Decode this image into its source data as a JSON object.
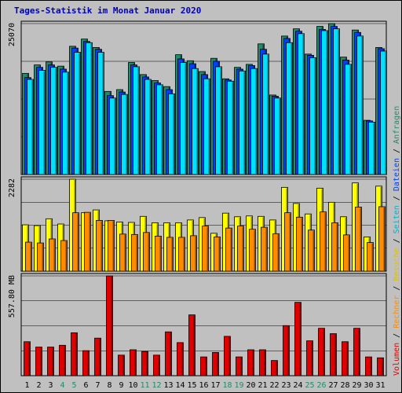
{
  "title": "Tages-Statistik im Monat Januar 2020",
  "chart_data": [
    {
      "type": "bar",
      "title": "",
      "ylabel": "25070",
      "ylim": [
        0,
        25070
      ],
      "categories": [
        "1",
        "2",
        "3",
        "4",
        "5",
        "6",
        "7",
        "8",
        "9",
        "10",
        "11",
        "12",
        "13",
        "14",
        "15",
        "16",
        "17",
        "18",
        "19",
        "20",
        "21",
        "22",
        "23",
        "24",
        "25",
        "26",
        "27",
        "28",
        "29",
        "30",
        "31"
      ],
      "series": [
        {
          "name": "Anfragen",
          "color": "#228b6b",
          "values": [
            16800,
            18200,
            18700,
            18000,
            21300,
            22500,
            21100,
            13800,
            14100,
            18600,
            16600,
            15600,
            14600,
            19900,
            18900,
            17100,
            19300,
            15900,
            17800,
            18300,
            21700,
            13200,
            23000,
            24200,
            20000,
            24600,
            25070,
            19500,
            24000,
            9000,
            21100
          ]
        },
        {
          "name": "Dateien",
          "color": "#0040ff",
          "values": [
            16100,
            17800,
            18200,
            17500,
            21000,
            22100,
            20800,
            13100,
            13700,
            18200,
            16200,
            15200,
            14100,
            19200,
            18400,
            16600,
            18800,
            15700,
            17500,
            18100,
            20800,
            13000,
            22600,
            23800,
            19800,
            24100,
            24600,
            19000,
            23600,
            8900,
            20900
          ]
        },
        {
          "name": "Seiten",
          "color": "#00e0ff",
          "values": [
            15800,
            17300,
            17800,
            17000,
            20300,
            21900,
            20300,
            12700,
            13300,
            17900,
            15800,
            14900,
            13400,
            18600,
            17600,
            15900,
            17900,
            15500,
            17200,
            17600,
            20000,
            12700,
            21900,
            23400,
            19400,
            23900,
            24200,
            18300,
            23000,
            8700,
            20500
          ]
        }
      ],
      "legend": "right-vertical"
    },
    {
      "type": "bar",
      "title": "",
      "ylabel": "2282",
      "ylim": [
        0,
        2282
      ],
      "categories": [
        "1",
        "2",
        "3",
        "4",
        "5",
        "6",
        "7",
        "8",
        "9",
        "10",
        "11",
        "12",
        "13",
        "14",
        "15",
        "16",
        "17",
        "18",
        "19",
        "20",
        "21",
        "22",
        "23",
        "24",
        "25",
        "26",
        "27",
        "28",
        "29",
        "30",
        "31"
      ],
      "series": [
        {
          "name": "Besuche",
          "color": "#ffff00",
          "values": [
            1150,
            1130,
            1300,
            1170,
            2282,
            1450,
            1520,
            1250,
            1220,
            1210,
            1360,
            1200,
            1200,
            1200,
            1270,
            1330,
            940,
            1440,
            1350,
            1370,
            1360,
            1270,
            2080,
            1680,
            1420,
            2060,
            1710,
            1350,
            2190,
            850,
            2110
          ]
        },
        {
          "name": "Rechner",
          "color": "#ff8c00",
          "values": [
            720,
            700,
            800,
            760,
            1450,
            1460,
            1260,
            1260,
            920,
            910,
            960,
            870,
            840,
            840,
            880,
            1120,
            850,
            1070,
            1120,
            1040,
            1090,
            930,
            1450,
            1340,
            1020,
            1470,
            1200,
            900,
            1590,
            710,
            1600
          ]
        }
      ],
      "legend": "right-vertical"
    },
    {
      "type": "bar",
      "title": "",
      "ylabel": "557.80 MB",
      "ylim": [
        0,
        557.8
      ],
      "categories": [
        "1",
        "2",
        "3",
        "4",
        "5",
        "6",
        "7",
        "8",
        "9",
        "10",
        "11",
        "12",
        "13",
        "14",
        "15",
        "16",
        "17",
        "18",
        "19",
        "20",
        "21",
        "22",
        "23",
        "24",
        "25",
        "26",
        "27",
        "28",
        "29",
        "30",
        "31"
      ],
      "series": [
        {
          "name": "Volumen",
          "color": "#e00000",
          "values": [
            190,
            160,
            160,
            170,
            240,
            140,
            210,
            557.8,
            115,
            145,
            135,
            115,
            245,
            185,
            340,
            105,
            130,
            220,
            105,
            145,
            145,
            85,
            280,
            410,
            195,
            265,
            235,
            190,
            265,
            105,
            100
          ]
        }
      ],
      "legend": "right-vertical"
    }
  ],
  "xaxis": {
    "ticks": [
      "1",
      "2",
      "3",
      "4",
      "5",
      "6",
      "7",
      "8",
      "9",
      "10",
      "11",
      "12",
      "13",
      "14",
      "15",
      "16",
      "17",
      "18",
      "19",
      "20",
      "21",
      "22",
      "23",
      "24",
      "25",
      "26",
      "27",
      "28",
      "29",
      "30",
      "31"
    ],
    "weekend_ticks": [
      "4",
      "5",
      "11",
      "12",
      "18",
      "19",
      "25",
      "26"
    ],
    "weekend_color": "#228b6b",
    "normal_color": "#000000"
  },
  "legend_labels": [
    {
      "text": "Volumen",
      "color": "#e00000"
    },
    {
      "text": "Rechner",
      "color": "#ff8c00"
    },
    {
      "text": "Besuche",
      "color": "#e0c000"
    },
    {
      "text": "Seiten",
      "color": "#00b0d0"
    },
    {
      "text": "Dateien",
      "color": "#0040ff"
    },
    {
      "text": "Anfragen",
      "color": "#228b6b"
    }
  ],
  "separator": "/"
}
